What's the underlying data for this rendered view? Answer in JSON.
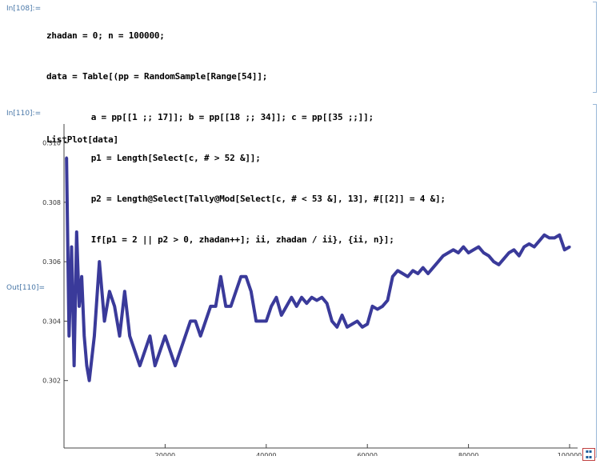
{
  "cells": {
    "in108_label": "In[108]:=",
    "in108_lines": [
      "zhadan = 0; n = 100000;",
      "data = Table[(pp = RandomSample[Range[54]];",
      "    a = pp[[1 ;; 17]]; b = pp[[18 ;; 34]]; c = pp[[35 ;;]];",
      "    p1 = Length[Select[c, # > 52 &]];",
      "    p2 = Length@Select[Tally@Mod[Select[c, # < 53 &], 13], #[[2]] = 4 &];",
      "    If[p1 = 2 || p2 > 0, zhadan++]; ii, zhadan / ii}, {ii, n}];"
    ],
    "in110_label": "In[110]:=",
    "in110_line": "ListPlot[data]",
    "out110_label": "Out[110]="
  },
  "chart_data": {
    "type": "scatter",
    "title": "",
    "xlabel": "",
    "ylabel": "",
    "xlim": [
      0,
      100000
    ],
    "ylim": [
      0.3,
      0.3105
    ],
    "x_ticks": [
      20000,
      40000,
      60000,
      80000,
      100000
    ],
    "x_tick_labels": [
      "20000",
      "40000",
      "60000",
      "80000",
      "100000"
    ],
    "y_ticks": [
      0.302,
      0.304,
      0.306,
      0.308,
      0.31
    ],
    "y_tick_labels": [
      "0.302",
      "0.304",
      "0.306",
      "0.308",
      "0.310"
    ],
    "marker_color": "#3a3a9a",
    "series": [
      {
        "x": [
          500,
          1000,
          1500,
          2000,
          2500,
          3000,
          3500,
          4000,
          4500,
          5000,
          6000,
          7000,
          8000,
          9000,
          10000,
          11000,
          12000,
          13000,
          14000,
          15000,
          16000,
          17000,
          18000,
          19000,
          20000,
          21000,
          22000,
          23000,
          24000,
          25000,
          26000,
          27000,
          28000,
          29000,
          30000,
          31000,
          32000,
          33000,
          34000,
          35000,
          36000,
          37000,
          38000,
          39000,
          40000,
          41000,
          42000,
          43000,
          44000,
          45000,
          46000,
          47000,
          48000,
          49000,
          50000,
          51000,
          52000,
          53000,
          54000,
          55000,
          56000,
          57000,
          58000,
          59000,
          60000,
          61000,
          62000,
          63000,
          64000,
          65000,
          66000,
          67000,
          68000,
          69000,
          70000,
          71000,
          72000,
          73000,
          74000,
          75000,
          76000,
          77000,
          78000,
          79000,
          80000,
          81000,
          82000,
          83000,
          84000,
          85000,
          86000,
          87000,
          88000,
          89000,
          90000,
          91000,
          92000,
          93000,
          94000,
          95000,
          96000,
          97000,
          98000,
          99000,
          100000
        ],
        "y": [
          0.3095,
          0.3035,
          0.3065,
          0.3025,
          0.307,
          0.3045,
          0.3055,
          0.3035,
          0.3025,
          0.302,
          0.3035,
          0.306,
          0.304,
          0.305,
          0.3045,
          0.3035,
          0.305,
          0.3035,
          0.303,
          0.3025,
          0.303,
          0.3035,
          0.3025,
          0.303,
          0.3035,
          0.303,
          0.3025,
          0.303,
          0.3035,
          0.304,
          0.304,
          0.3035,
          0.304,
          0.3045,
          0.3045,
          0.3055,
          0.3045,
          0.3045,
          0.305,
          0.3055,
          0.3055,
          0.305,
          0.304,
          0.304,
          0.304,
          0.3045,
          0.3048,
          0.3042,
          0.3045,
          0.3048,
          0.3045,
          0.3048,
          0.3046,
          0.3048,
          0.3047,
          0.3048,
          0.3046,
          0.304,
          0.3038,
          0.3042,
          0.3038,
          0.3039,
          0.304,
          0.3038,
          0.3039,
          0.3045,
          0.3044,
          0.3045,
          0.3047,
          0.3055,
          0.3057,
          0.3056,
          0.3055,
          0.3057,
          0.3056,
          0.3058,
          0.3056,
          0.3058,
          0.306,
          0.3062,
          0.3063,
          0.3064,
          0.3063,
          0.3065,
          0.3063,
          0.3064,
          0.3065,
          0.3063,
          0.3062,
          0.306,
          0.3059,
          0.3061,
          0.3063,
          0.3064,
          0.3062,
          0.3065,
          0.3066,
          0.3065,
          0.3067,
          0.3069,
          0.3068,
          0.3068,
          0.3069,
          0.3064,
          0.3065
        ]
      }
    ]
  }
}
